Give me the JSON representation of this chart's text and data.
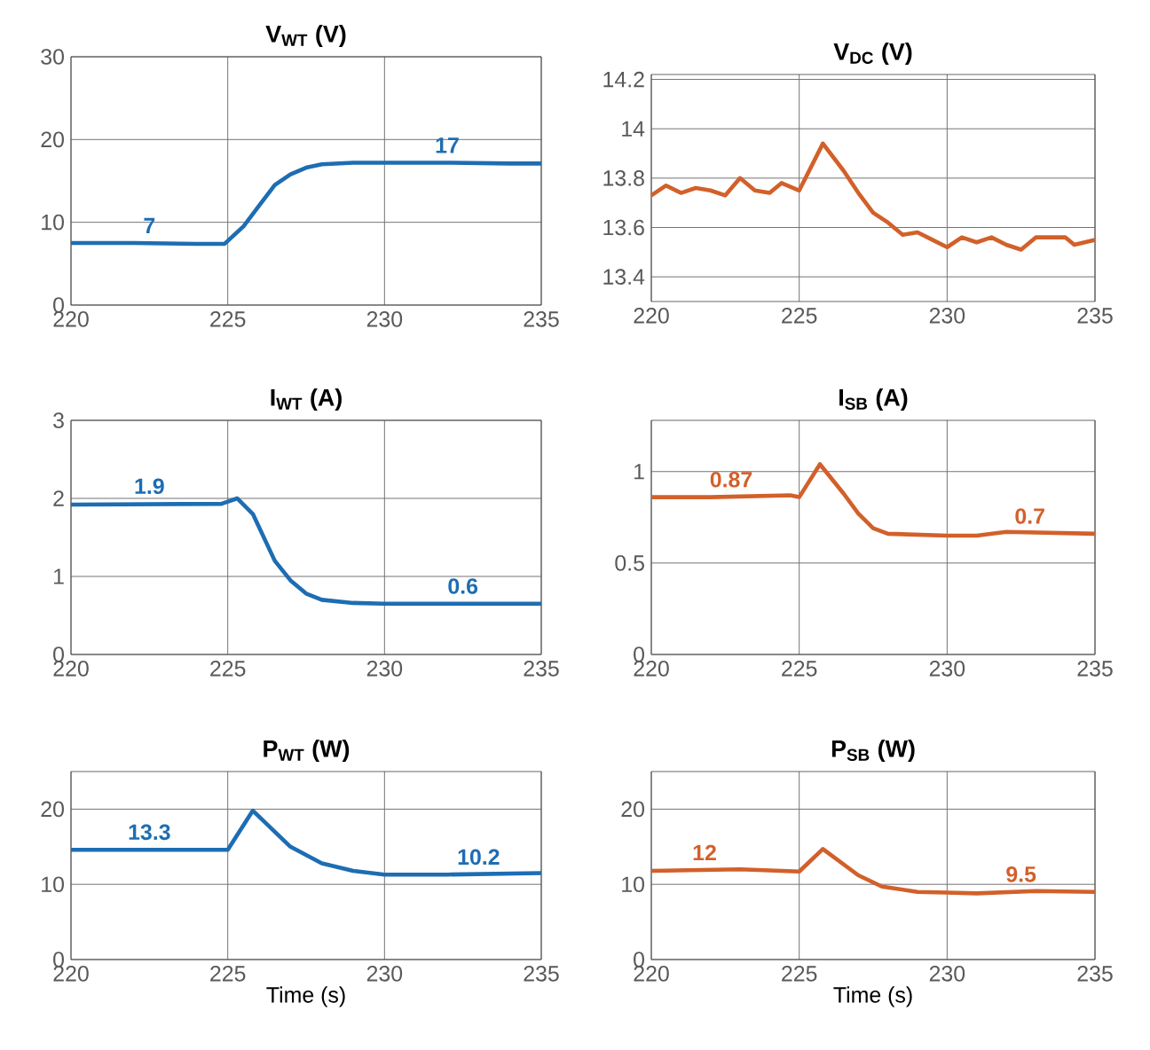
{
  "chart_data": [
    {
      "type": "line",
      "title": "V$_{WT}$ (V)",
      "x": [
        220,
        222,
        224,
        224.9,
        225.5,
        226,
        226.5,
        227,
        227.5,
        228,
        229,
        230,
        232,
        234,
        235
      ],
      "series": [
        {
          "color": "#1d6db3",
          "values": [
            7.5,
            7.5,
            7.4,
            7.4,
            9.5,
            12,
            14.5,
            15.8,
            16.6,
            17,
            17.2,
            17.2,
            17.2,
            17.1,
            17.1
          ]
        }
      ],
      "xlim": [
        220,
        235
      ],
      "xticks": [
        220,
        225,
        230,
        235
      ],
      "ylim": [
        0,
        30
      ],
      "yticks": [
        0,
        10,
        20,
        30
      ],
      "grid": true,
      "annotations": [
        {
          "text": "7",
          "x": 222.5,
          "y": 7.5
        },
        {
          "text": "17",
          "x": 232,
          "y": 17.2
        }
      ]
    },
    {
      "type": "line",
      "title": "V$_{DC}$ (V)",
      "x": [
        220,
        220.5,
        221,
        221.5,
        222,
        222.5,
        223,
        223.5,
        224,
        224.4,
        225,
        225.8,
        226.5,
        227,
        227.5,
        228,
        228.5,
        229,
        229.5,
        230,
        230.5,
        231,
        231.5,
        232,
        232.5,
        233,
        233.5,
        234,
        234.3,
        235
      ],
      "series": [
        {
          "color": "#d2602a",
          "values": [
            13.73,
            13.77,
            13.74,
            13.76,
            13.75,
            13.73,
            13.8,
            13.75,
            13.74,
            13.78,
            13.75,
            13.94,
            13.83,
            13.74,
            13.66,
            13.62,
            13.57,
            13.58,
            13.55,
            13.52,
            13.56,
            13.54,
            13.56,
            13.53,
            13.51,
            13.56,
            13.56,
            13.56,
            13.53,
            13.55
          ]
        }
      ],
      "xlim": [
        220,
        235
      ],
      "xticks": [
        220,
        225,
        230,
        235
      ],
      "ylim": [
        13.3,
        14.22
      ],
      "yticks": [
        13.4,
        13.6,
        13.8,
        14,
        14.2
      ],
      "grid": true
    },
    {
      "type": "line",
      "title": "I$_{WT}$ (A)",
      "x": [
        220,
        224.8,
        225.3,
        225.8,
        226.5,
        227,
        227.5,
        228,
        229,
        230,
        232,
        235
      ],
      "series": [
        {
          "color": "#1d6db3",
          "values": [
            1.92,
            1.93,
            2.0,
            1.8,
            1.2,
            0.95,
            0.78,
            0.7,
            0.66,
            0.65,
            0.65,
            0.65
          ]
        }
      ],
      "xlim": [
        220,
        235
      ],
      "xticks": [
        220,
        225,
        230,
        235
      ],
      "ylim": [
        0,
        3
      ],
      "yticks": [
        0,
        1,
        2,
        3
      ],
      "grid": true,
      "annotations": [
        {
          "text": "1.9",
          "x": 222.5,
          "y": 1.93
        },
        {
          "text": "0.6",
          "x": 232.5,
          "y": 0.65
        }
      ]
    },
    {
      "type": "line",
      "title": "I$_{SB}$ (A)",
      "x": [
        220,
        222,
        224.7,
        225,
        225.7,
        226.5,
        227,
        227.5,
        228,
        230,
        231,
        232,
        235
      ],
      "series": [
        {
          "color": "#d2602a",
          "values": [
            0.86,
            0.86,
            0.87,
            0.86,
            1.04,
            0.88,
            0.77,
            0.69,
            0.66,
            0.65,
            0.65,
            0.67,
            0.66
          ]
        }
      ],
      "xlim": [
        220,
        235
      ],
      "xticks": [
        220,
        225,
        230,
        235
      ],
      "ylim": [
        0,
        1.28
      ],
      "yticks": [
        0,
        0.5,
        1
      ],
      "grid": true,
      "annotations": [
        {
          "text": "0.87",
          "x": 222.7,
          "y": 0.86
        },
        {
          "text": "0.7",
          "x": 232.8,
          "y": 0.66
        }
      ]
    },
    {
      "type": "line",
      "title": "P$_{WT}$ (W)",
      "xlabel": "Time (s)",
      "x": [
        220,
        225,
        225.8,
        227,
        228,
        229,
        230,
        232,
        235
      ],
      "series": [
        {
          "color": "#1d6db3",
          "values": [
            14.6,
            14.6,
            19.8,
            15,
            12.8,
            11.8,
            11.3,
            11.3,
            11.5
          ]
        }
      ],
      "xlim": [
        220,
        235
      ],
      "xticks": [
        220,
        225,
        230,
        235
      ],
      "ylim": [
        0,
        25
      ],
      "yticks": [
        0,
        10,
        20
      ],
      "grid": true,
      "annotations": [
        {
          "text": "13.3",
          "x": 222.5,
          "y": 14.6
        },
        {
          "text": "10.2",
          "x": 233,
          "y": 11.3
        }
      ]
    },
    {
      "type": "line",
      "title": "P$_{SB}$ (W)",
      "xlabel": "Time (s)",
      "x": [
        220,
        223,
        225,
        225.8,
        227,
        227.8,
        229,
        230,
        231,
        233,
        235
      ],
      "series": [
        {
          "color": "#d2602a",
          "values": [
            11.8,
            12,
            11.7,
            14.7,
            11.2,
            9.7,
            9.0,
            8.9,
            8.8,
            9.1,
            9.0
          ]
        }
      ],
      "xlim": [
        220,
        235
      ],
      "xticks": [
        220,
        225,
        230,
        235
      ],
      "ylim": [
        0,
        25
      ],
      "yticks": [
        0,
        10,
        20
      ],
      "grid": true,
      "annotations": [
        {
          "text": "12",
          "x": 221.8,
          "y": 11.9
        },
        {
          "text": "9.5",
          "x": 232.5,
          "y": 9.0
        }
      ]
    }
  ]
}
